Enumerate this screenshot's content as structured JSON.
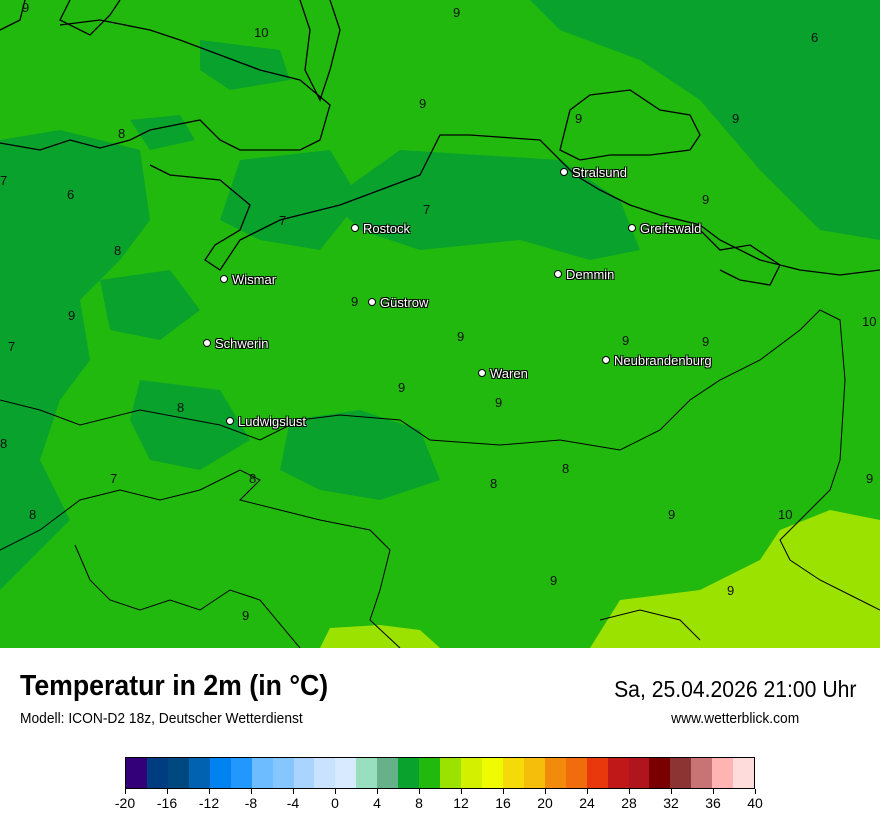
{
  "header": {
    "title": "Temperatur in 2m (in °C)",
    "subtitle": "Modell: ICON-D2 18z, Deutscher Wetterdienst",
    "datetime": "Sa, 25.04.2026 21:00 Uhr",
    "site": "www.wetterblick.com"
  },
  "map": {
    "fill_colors": {
      "6_8": "#08a22c",
      "8_10": "#21b90e",
      "10_12": "#9ce200"
    },
    "cities": [
      "Stralsund",
      "Rostock",
      "Greifswald",
      "Wismar",
      "Demmin",
      "Güstrow",
      "Schwerin",
      "Neubrandenburg",
      "Waren",
      "Ludwigslust"
    ],
    "isolabels": [
      "9",
      "10",
      "9",
      "6",
      "9",
      "8",
      "9",
      "7",
      "6",
      "7",
      "9",
      "7",
      "8",
      "9",
      "9",
      "7",
      "9",
      "9",
      "9",
      "9",
      "9",
      "10",
      "8",
      "8",
      "9",
      "8",
      "7",
      "8",
      "8",
      "8",
      "9",
      "10",
      "9",
      "9",
      "9",
      "9"
    ]
  },
  "legend": {
    "unit": "°C",
    "colors": [
      "#33007a",
      "#003d80",
      "#004880",
      "#0062b0",
      "#0082f0",
      "#2298ff",
      "#6cbcff",
      "#86c6ff",
      "#a8d4ff",
      "#c8e2ff",
      "#d8eaff",
      "#98dfc0",
      "#66b08a",
      "#08a22c",
      "#21b90e",
      "#9ce200",
      "#d2f000",
      "#f0fa00",
      "#f4da08",
      "#f4be0a",
      "#f28a0c",
      "#f06c0c",
      "#e8380c",
      "#c01818",
      "#b0141c",
      "#7a0000",
      "#8c3434",
      "#c87474",
      "#ffb4b4",
      "#ffdcdc"
    ],
    "ticks": [
      "-20",
      "-16",
      "-12",
      "-8",
      "-4",
      "0",
      "4",
      "8",
      "12",
      "16",
      "20",
      "24",
      "28",
      "32",
      "36",
      "40"
    ]
  }
}
